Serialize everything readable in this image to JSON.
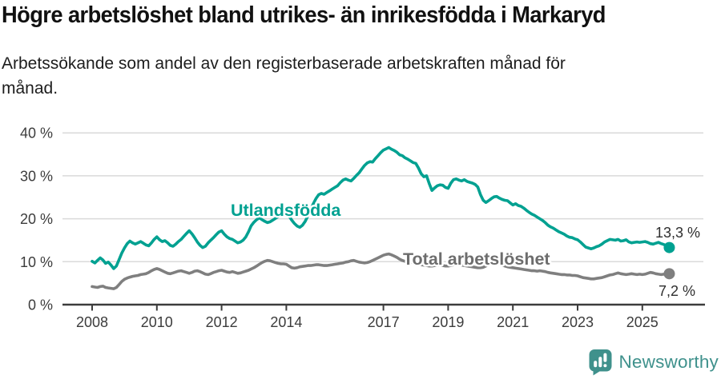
{
  "header": {
    "title": "Högre arbetslöshet bland utrikes- än inrikesfödda i Markaryd",
    "subtitle_lines": [
      "Arbetssökande som andel av den registerbaserade arbetskraften månad för",
      "månad."
    ]
  },
  "chart_data": {
    "type": "line",
    "title": "Högre arbetslöshet bland utrikes- än inrikesfödda i Markaryd",
    "subtitle": "Arbetssökande som andel av den registerbaserade arbetskraften månad för månad.",
    "frequency": "monthly",
    "x_start_year": 2008,
    "x_end": "2025-11",
    "xlim": [
      2007.1,
      2026.9
    ],
    "ylim": [
      0,
      42
    ],
    "grid": "horizontal",
    "legend_position": "inline-labels",
    "y_ticks": [
      {
        "value": 0,
        "label": "0 %"
      },
      {
        "value": 10,
        "label": "10 %"
      },
      {
        "value": 20,
        "label": "20 %"
      },
      {
        "value": 30,
        "label": "30 %"
      },
      {
        "value": 40,
        "label": "40 %"
      }
    ],
    "x_ticks": [
      {
        "value": 2008,
        "label": "2008"
      },
      {
        "value": 2010,
        "label": "2010"
      },
      {
        "value": 2012,
        "label": "2012"
      },
      {
        "value": 2014,
        "label": "2014"
      },
      {
        "value": 2017,
        "label": "2017"
      },
      {
        "value": 2019,
        "label": "2019"
      },
      {
        "value": 2021,
        "label": "2021"
      },
      {
        "value": 2023,
        "label": "2023"
      },
      {
        "value": 2025,
        "label": "2025"
      }
    ],
    "series": [
      {
        "name": "Utlandsfödda",
        "color": "#00a191",
        "end_value": 13.3,
        "end_label": "13,3 %",
        "values": [
          10.1,
          9.7,
          10.3,
          10.9,
          10.4,
          9.6,
          9.9,
          9.2,
          8.4,
          9.0,
          10.5,
          12.0,
          13.2,
          14.2,
          14.8,
          14.4,
          14.1,
          14.4,
          14.7,
          14.3,
          13.9,
          13.7,
          14.4,
          15.2,
          15.8,
          15.1,
          14.7,
          14.9,
          14.4,
          13.8,
          13.6,
          14.1,
          14.7,
          15.2,
          15.9,
          16.6,
          17.2,
          16.5,
          15.6,
          14.6,
          13.8,
          13.3,
          13.6,
          14.4,
          15.0,
          15.6,
          16.3,
          16.9,
          17.2,
          16.4,
          15.8,
          15.4,
          15.2,
          14.8,
          14.4,
          14.6,
          15.0,
          15.8,
          17.0,
          18.4,
          19.2,
          19.8,
          20.2,
          19.8,
          19.4,
          19.1,
          19.3,
          19.7,
          20.1,
          20.5,
          20.9,
          21.2,
          21.4,
          20.6,
          19.7,
          18.9,
          18.3,
          18.0,
          18.5,
          19.4,
          20.7,
          22.1,
          23.5,
          24.7,
          25.6,
          25.9,
          25.7,
          26.1,
          26.5,
          26.9,
          27.3,
          27.7,
          28.4,
          29.0,
          29.3,
          29.0,
          28.8,
          29.4,
          30.1,
          30.7,
          31.6,
          32.4,
          33.0,
          33.3,
          33.2,
          34.0,
          34.7,
          35.4,
          36.0,
          36.3,
          36.6,
          36.2,
          35.9,
          35.5,
          34.9,
          34.7,
          34.2,
          33.9,
          33.5,
          33.1,
          32.9,
          31.8,
          30.5,
          29.8,
          30.0,
          28.2,
          26.6,
          27.2,
          27.7,
          27.9,
          27.8,
          27.3,
          27.1,
          28.3,
          29.1,
          29.3,
          29.0,
          28.8,
          29.1,
          28.7,
          28.5,
          28.3,
          28.0,
          27.4,
          25.6,
          24.3,
          23.8,
          24.2,
          24.7,
          25.1,
          25.2,
          24.8,
          24.5,
          24.3,
          24.2,
          23.7,
          23.2,
          23.5,
          23.1,
          22.9,
          22.5,
          22.0,
          21.5,
          21.1,
          20.8,
          20.4,
          20.0,
          19.6,
          19.1,
          18.5,
          18.1,
          17.8,
          17.4,
          17.0,
          16.7,
          16.4,
          16.0,
          15.7,
          15.6,
          15.3,
          15.1,
          14.6,
          14.0,
          13.4,
          13.2,
          13.0,
          13.2,
          13.5,
          13.7,
          14.1,
          14.6,
          14.9,
          15.2,
          15.1,
          15.0,
          15.2,
          14.8,
          14.9,
          15.1,
          14.6,
          14.4,
          14.5,
          14.6,
          14.5,
          14.6,
          14.7,
          14.5,
          14.2,
          14.1,
          14.3,
          14.5,
          14.2,
          14.0,
          13.6,
          13.3
        ]
      },
      {
        "name": "Total arbetslöshet",
        "color": "#7f7f7f",
        "end_value": 7.2,
        "end_label": "7,2 %",
        "values": [
          4.2,
          4.1,
          4.0,
          4.2,
          4.3,
          4.0,
          3.9,
          3.8,
          3.7,
          4.0,
          4.7,
          5.4,
          5.9,
          6.2,
          6.4,
          6.6,
          6.7,
          6.8,
          7.0,
          7.1,
          7.2,
          7.5,
          7.9,
          8.2,
          8.4,
          8.2,
          7.9,
          7.6,
          7.3,
          7.2,
          7.4,
          7.6,
          7.8,
          7.9,
          7.7,
          7.5,
          7.3,
          7.5,
          7.8,
          7.9,
          7.7,
          7.4,
          7.1,
          7.0,
          7.2,
          7.5,
          7.7,
          7.9,
          8.0,
          7.8,
          7.6,
          7.5,
          7.7,
          7.5,
          7.3,
          7.4,
          7.6,
          7.8,
          8.0,
          8.3,
          8.6,
          9.0,
          9.4,
          9.8,
          10.1,
          10.3,
          10.2,
          10.0,
          9.8,
          9.6,
          9.5,
          9.5,
          9.4,
          9.0,
          8.6,
          8.5,
          8.6,
          8.8,
          8.9,
          9.0,
          9.1,
          9.1,
          9.2,
          9.3,
          9.3,
          9.2,
          9.1,
          9.1,
          9.2,
          9.3,
          9.4,
          9.5,
          9.6,
          9.7,
          9.9,
          10.0,
          10.2,
          10.3,
          10.1,
          9.9,
          9.8,
          9.7,
          9.8,
          10.0,
          10.3,
          10.6,
          10.9,
          11.2,
          11.5,
          11.7,
          11.8,
          11.6,
          11.3,
          11.0,
          10.6,
          10.3,
          10.1,
          10.0,
          9.9,
          9.8,
          9.7,
          9.5,
          9.3,
          9.2,
          9.1,
          9.0,
          9.0,
          9.1,
          9.2,
          9.2,
          9.1,
          9.0,
          9.0,
          9.1,
          9.3,
          9.4,
          9.3,
          9.2,
          9.1,
          9.0,
          8.9,
          8.8,
          8.7,
          8.6,
          8.6,
          8.7,
          9.0,
          9.4,
          9.6,
          9.7,
          9.6,
          9.4,
          9.2,
          9.0,
          8.8,
          8.7,
          8.6,
          8.5,
          8.4,
          8.3,
          8.2,
          8.1,
          8.0,
          7.9,
          7.9,
          7.8,
          7.9,
          7.8,
          7.7,
          7.5,
          7.4,
          7.3,
          7.2,
          7.1,
          7.0,
          7.0,
          6.9,
          6.9,
          6.8,
          6.8,
          6.7,
          6.5,
          6.3,
          6.2,
          6.1,
          6.0,
          6.0,
          6.1,
          6.2,
          6.3,
          6.5,
          6.7,
          6.9,
          7.0,
          7.2,
          7.4,
          7.2,
          7.1,
          7.0,
          7.1,
          7.2,
          7.1,
          7.0,
          7.1,
          7.0,
          7.1,
          7.3,
          7.5,
          7.4,
          7.2,
          7.1,
          7.0,
          7.1,
          7.1,
          7.2
        ]
      }
    ],
    "colors": {
      "grid": "#dadada",
      "axis": "#3c3c3c",
      "tick_text": "#3c3c3c",
      "end_label_text": "#2f2f2f"
    }
  },
  "footer": {
    "brand": "Newsworthy",
    "brand_color": "#3f918c",
    "logo_icon": "bar-chart-speech-bubble-icon"
  }
}
